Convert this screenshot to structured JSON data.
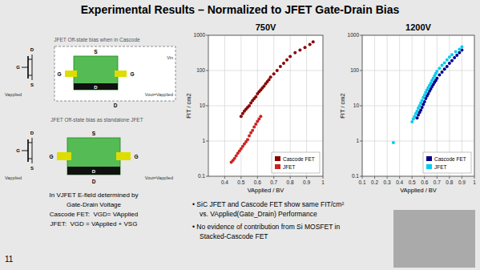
{
  "title": "Experimental Results – Normalized to JFET Gate-Drain Bias",
  "annotations": [
    "JFET Off-state bias when in Cascode",
    "D",
    "G",
    "S",
    "S",
    "G",
    "G",
    "D",
    "Vin",
    "Vout=Vapplied",
    "Vapplied",
    "D",
    "JFET Off-state bias as standalone JFET",
    "D",
    "G",
    "S",
    "Vapplied",
    "S",
    "G",
    "G",
    "D",
    "Vout=Vapplied",
    "D",
    "In VJFET E-field determined by",
    "Gate-Drain Voltage",
    "Cascode FET:  VGD= VApplied",
    "JFET:  VGD = VApplied + VSG",
    "11",
    "• SiC JFET and Cascode FET show same FIT/cm²",
    "vs. VApplied(Gate_Drain) Performance",
    "• No evidence of contribution from Si MOSFET in",
    "Stacked-Cascode FET"
  ],
  "chart_data": [
    {
      "type": "scatter",
      "title": "750V",
      "xlabel": "VApplied / BV",
      "ylabel": "FIT / cm2",
      "xlim": [
        0.3,
        1.0
      ],
      "ylim": [
        0.1,
        1000
      ],
      "xticks": [
        0.4,
        0.5,
        0.6,
        0.7,
        0.8,
        0.9,
        1.0
      ],
      "yticks": [
        0.1,
        1,
        10,
        100,
        1000
      ],
      "log": "y",
      "grid": true,
      "legend": "lower right",
      "series": [
        {
          "name": "Cascode FET",
          "color": "#8B0000",
          "x": [
            0.5,
            0.51,
            0.52,
            0.53,
            0.54,
            0.55,
            0.56,
            0.57,
            0.58,
            0.59,
            0.6,
            0.61,
            0.62,
            0.63,
            0.64,
            0.65,
            0.66,
            0.67,
            0.68,
            0.7,
            0.72,
            0.74,
            0.76,
            0.78,
            0.8,
            0.83,
            0.86,
            0.89,
            0.92,
            0.94
          ],
          "values": [
            5.0,
            6.0,
            7.0,
            8.0,
            9.0,
            10.0,
            12.0,
            14.0,
            16.0,
            18.0,
            22.0,
            25.0,
            28.0,
            32.0,
            36.0,
            42.0,
            48.0,
            55.0,
            65.0,
            80.0,
            100.0,
            130.0,
            160.0,
            200.0,
            250.0,
            320.0,
            380.0,
            450.0,
            550.0,
            650.0
          ]
        },
        {
          "name": "JFET",
          "color": "#CC2222",
          "x": [
            0.44,
            0.45,
            0.46,
            0.47,
            0.48,
            0.49,
            0.5,
            0.51,
            0.52,
            0.53,
            0.54,
            0.55,
            0.56,
            0.57,
            0.58,
            0.59,
            0.6,
            0.61,
            0.62
          ],
          "values": [
            0.25,
            0.28,
            0.32,
            0.38,
            0.45,
            0.52,
            0.6,
            0.7,
            0.82,
            0.95,
            1.1,
            1.4,
            1.7,
            2.0,
            2.5,
            3.0,
            3.6,
            4.2,
            5.0
          ]
        }
      ]
    },
    {
      "type": "scatter",
      "title": "1200V",
      "xlabel": "VApplied / BV",
      "ylabel": "FIT / cm2",
      "xlim": [
        0.1,
        1.0
      ],
      "ylim": [
        0.1,
        1000
      ],
      "xticks": [
        0.1,
        0.2,
        0.3,
        0.4,
        0.5,
        0.6,
        0.7,
        0.8,
        0.9,
        1.0
      ],
      "yticks": [
        0.1,
        1,
        10,
        100,
        1000
      ],
      "log": "y",
      "grid": true,
      "legend": "lower right",
      "series": [
        {
          "name": "Cascode FET",
          "color": "#00008B",
          "x": [
            0.54,
            0.55,
            0.56,
            0.57,
            0.58,
            0.59,
            0.6,
            0.61,
            0.62,
            0.63,
            0.64,
            0.65,
            0.66,
            0.67,
            0.68,
            0.69,
            0.7,
            0.72,
            0.74,
            0.76,
            0.78,
            0.8,
            0.82,
            0.84,
            0.86,
            0.88,
            0.9
          ],
          "values": [
            4.5,
            5.5,
            6.5,
            7.5,
            9.0,
            11.0,
            13.0,
            16.0,
            19.0,
            22.0,
            26.0,
            30.0,
            35.0,
            40.0,
            46.0,
            52.0,
            60.0,
            75.0,
            90.0,
            110.0,
            130.0,
            160.0,
            190.0,
            230.0,
            270.0,
            320.0,
            380.0
          ]
        },
        {
          "name": "JFET",
          "color": "#00CCEE",
          "x": [
            0.5,
            0.51,
            0.52,
            0.53,
            0.54,
            0.55,
            0.56,
            0.57,
            0.58,
            0.59,
            0.6,
            0.61,
            0.62,
            0.63,
            0.64,
            0.65,
            0.66,
            0.67,
            0.68,
            0.69,
            0.7,
            0.72,
            0.74,
            0.76,
            0.78,
            0.8,
            0.82,
            0.85,
            0.88,
            0.9,
            0.35
          ],
          "values": [
            3.5,
            4.2,
            5.0,
            6.0,
            7.0,
            8.5,
            10.0,
            12.0,
            14.0,
            17.0,
            20.0,
            24.0,
            28.0,
            33.0,
            38.0,
            44.0,
            52.0,
            60.0,
            70.0,
            82.0,
            95.0,
            115.0,
            140.0,
            165.0,
            200.0,
            240.0,
            280.0,
            340.0,
            400.0,
            470.0,
            0.9
          ]
        }
      ]
    }
  ]
}
